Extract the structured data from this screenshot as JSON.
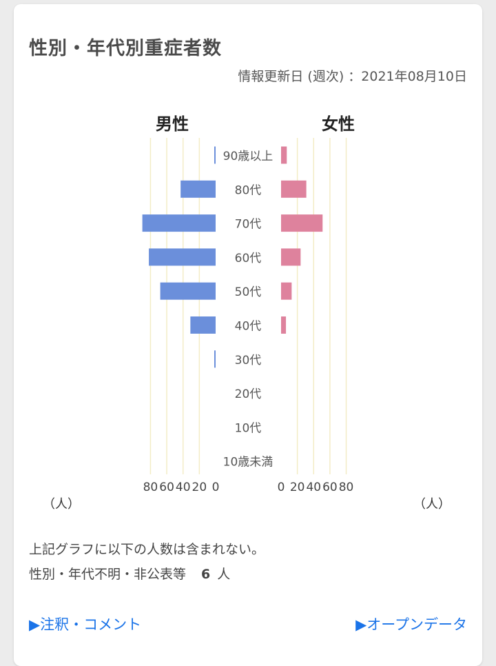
{
  "card": {
    "title": "性別・年代別重症者数",
    "updated": "情報更新日 (週次) ：2021年08月10日"
  },
  "chart_data": {
    "type": "bar",
    "orientation": "horizontal-population-pyramid",
    "categories": [
      "90歳以上",
      "80代",
      "70代",
      "60代",
      "50代",
      "40代",
      "30代",
      "20代",
      "10代",
      "10歳未満"
    ],
    "series": [
      {
        "name": "男性",
        "color": "#6b8fdb",
        "values": [
          1,
          43,
          90,
          82,
          68,
          31,
          1,
          0,
          0,
          0
        ]
      },
      {
        "name": "女性",
        "color": "#de829d",
        "values": [
          7,
          31,
          51,
          24,
          13,
          6,
          0,
          0,
          0,
          0
        ]
      }
    ],
    "xticks": [
      80,
      60,
      40,
      20,
      0
    ],
    "xlim": [
      0,
      80
    ],
    "xunit": "（人）",
    "grid": true
  },
  "notes": {
    "line1": "上記グラフに以下の人数は含まれない。",
    "line2_label": "性別・年代不明・非公表等",
    "line2_count": "6",
    "line2_unit": "人"
  },
  "links": {
    "left": "▶注釈・コメント",
    "right": "▶オープンデータ"
  }
}
